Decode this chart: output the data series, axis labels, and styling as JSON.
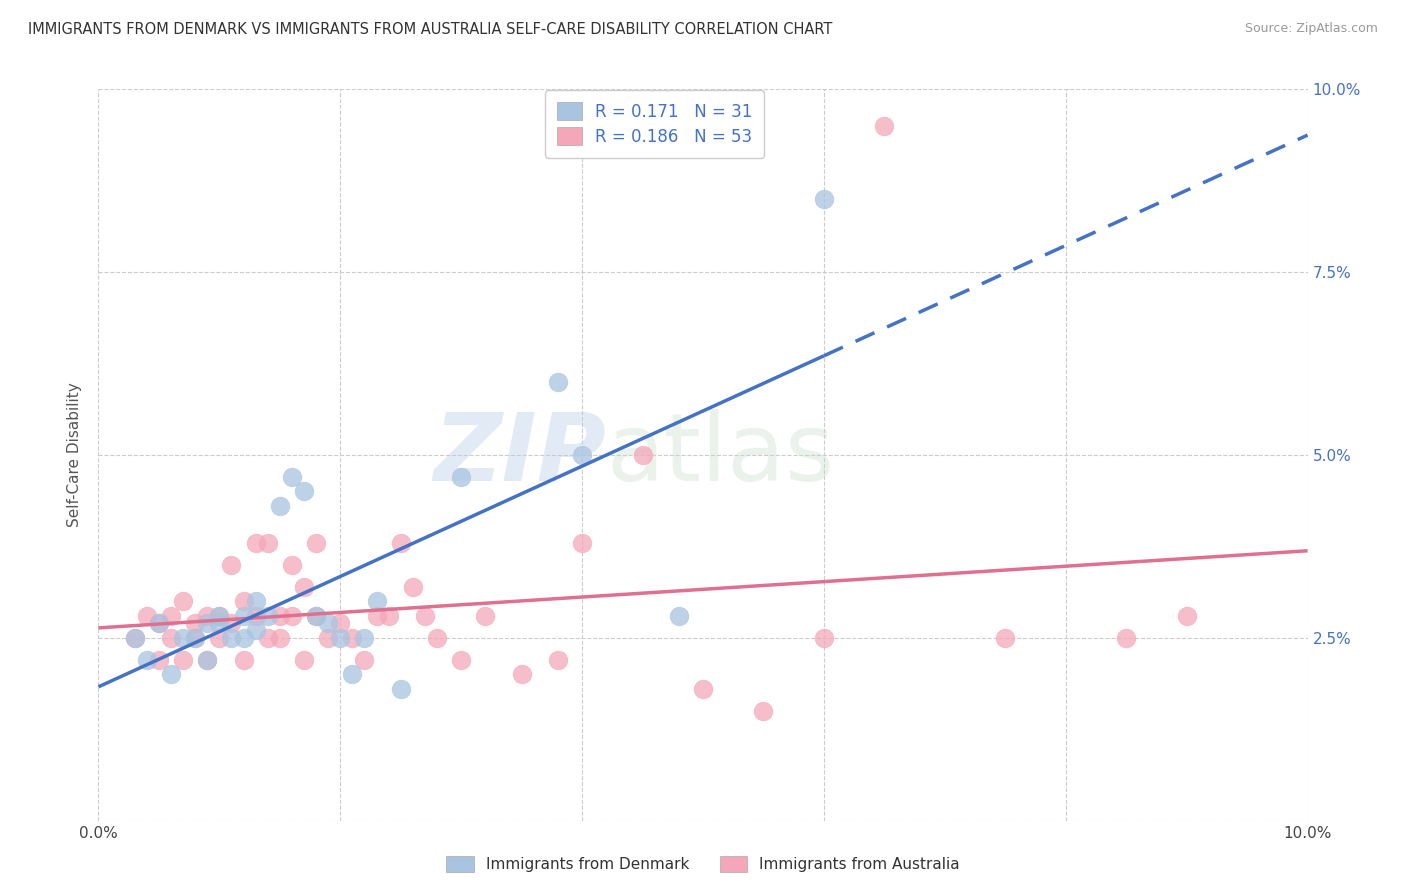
{
  "title": "IMMIGRANTS FROM DENMARK VS IMMIGRANTS FROM AUSTRALIA SELF-CARE DISABILITY CORRELATION CHART",
  "source": "Source: ZipAtlas.com",
  "ylabel": "Self-Care Disability",
  "xlim": [
    0.0,
    0.1
  ],
  "ylim": [
    0.0,
    0.1
  ],
  "ytick_positions": [
    0.0,
    0.025,
    0.05,
    0.075,
    0.1
  ],
  "ytick_labels_right": [
    "",
    "2.5%",
    "5.0%",
    "7.5%",
    "10.0%"
  ],
  "xtick_positions": [
    0.0,
    0.02,
    0.04,
    0.06,
    0.08,
    0.1
  ],
  "xtick_labels": [
    "0.0%",
    "",
    "",
    "",
    "",
    "10.0%"
  ],
  "denmark_color": "#a8c4e0",
  "australia_color": "#f4a7b9",
  "denmark_line_color": "#4472c4",
  "australia_line_color": "#e07090",
  "denmark_R": 0.171,
  "denmark_N": 31,
  "australia_R": 0.186,
  "australia_N": 53,
  "background_color": "#ffffff",
  "grid_color": "#cccccc",
  "watermark": "ZIPatlas",
  "legend_label1": "Immigrants from Denmark",
  "legend_label2": "Immigrants from Australia",
  "denmark_x": [
    0.003,
    0.004,
    0.005,
    0.006,
    0.007,
    0.008,
    0.009,
    0.009,
    0.01,
    0.01,
    0.011,
    0.012,
    0.012,
    0.013,
    0.013,
    0.014,
    0.015,
    0.016,
    0.017,
    0.018,
    0.019,
    0.02,
    0.021,
    0.022,
    0.023,
    0.025,
    0.03,
    0.038,
    0.04,
    0.048,
    0.06
  ],
  "denmark_y": [
    0.025,
    0.022,
    0.027,
    0.02,
    0.025,
    0.025,
    0.027,
    0.022,
    0.028,
    0.027,
    0.025,
    0.028,
    0.025,
    0.026,
    0.03,
    0.028,
    0.043,
    0.047,
    0.045,
    0.028,
    0.027,
    0.025,
    0.02,
    0.025,
    0.03,
    0.018,
    0.047,
    0.06,
    0.05,
    0.028,
    0.085
  ],
  "australia_x": [
    0.003,
    0.004,
    0.005,
    0.005,
    0.006,
    0.006,
    0.007,
    0.007,
    0.008,
    0.008,
    0.009,
    0.009,
    0.01,
    0.01,
    0.011,
    0.011,
    0.012,
    0.012,
    0.013,
    0.013,
    0.014,
    0.014,
    0.015,
    0.015,
    0.016,
    0.016,
    0.017,
    0.017,
    0.018,
    0.018,
    0.019,
    0.02,
    0.021,
    0.022,
    0.023,
    0.024,
    0.025,
    0.026,
    0.027,
    0.028,
    0.03,
    0.032,
    0.035,
    0.038,
    0.04,
    0.045,
    0.05,
    0.055,
    0.06,
    0.065,
    0.075,
    0.085,
    0.09
  ],
  "australia_y": [
    0.025,
    0.028,
    0.027,
    0.022,
    0.028,
    0.025,
    0.03,
    0.022,
    0.027,
    0.025,
    0.028,
    0.022,
    0.028,
    0.025,
    0.027,
    0.035,
    0.03,
    0.022,
    0.028,
    0.038,
    0.025,
    0.038,
    0.028,
    0.025,
    0.028,
    0.035,
    0.032,
    0.022,
    0.028,
    0.038,
    0.025,
    0.027,
    0.025,
    0.022,
    0.028,
    0.028,
    0.038,
    0.032,
    0.028,
    0.025,
    0.022,
    0.028,
    0.02,
    0.022,
    0.038,
    0.05,
    0.018,
    0.015,
    0.025,
    0.095,
    0.025,
    0.025,
    0.028
  ]
}
